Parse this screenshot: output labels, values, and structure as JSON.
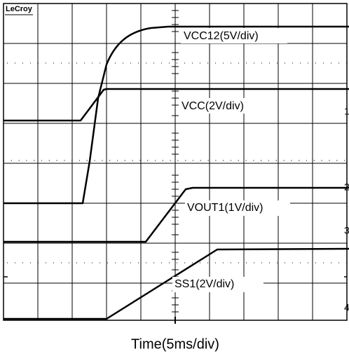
{
  "brand": "LeCroy",
  "traces": [
    {
      "label": "VCC12(5V/div)"
    },
    {
      "label": "VCC(2V/div)"
    },
    {
      "label": "VOUT1(1V/div)"
    },
    {
      "label": "SS1(2V/div)"
    }
  ],
  "channel_markers": [
    "1",
    "2",
    "3",
    "4"
  ],
  "x_label": "Time(5ms/div)"
}
